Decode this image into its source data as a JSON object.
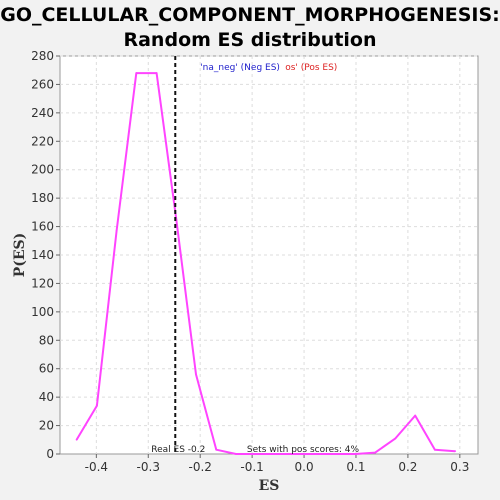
{
  "chart_data": {
    "type": "line",
    "title_line1": "GO_CELLULAR_COMPONENT_MORPHOGENESIS:",
    "title_line2": "Random ES distribution",
    "xlabel": "ES",
    "ylabel": "P(ES)",
    "xlim": [
      -0.47,
      0.335
    ],
    "ylim": [
      0,
      280
    ],
    "x_ticks": [
      -0.4,
      -0.3,
      -0.2,
      -0.1,
      0.0,
      0.1,
      0.2,
      0.3
    ],
    "x_tick_labels": [
      "-0.4",
      "-0.3",
      "-0.2",
      "-0.1",
      "0.0",
      "0.1",
      "0.2",
      "0.3"
    ],
    "y_ticks": [
      0,
      20,
      40,
      60,
      80,
      100,
      120,
      140,
      160,
      180,
      200,
      220,
      240,
      260,
      280
    ],
    "y_tick_labels": [
      "0",
      "20",
      "40",
      "60",
      "80",
      "100",
      "120",
      "140",
      "160",
      "180",
      "200",
      "220",
      "240",
      "260",
      "280"
    ],
    "grid": true,
    "series": [
      {
        "color": "#ff44ff",
        "x": [
          -0.438,
          -0.399,
          -0.361,
          -0.323,
          -0.284,
          -0.246,
          -0.208,
          -0.169,
          -0.131,
          -0.093,
          -0.054,
          -0.016,
          0.022,
          0.061,
          0.099,
          0.137,
          0.176,
          0.214,
          0.252,
          0.291
        ],
        "y": [
          10,
          34,
          157,
          268,
          268,
          165,
          56,
          3,
          0,
          0,
          0,
          0,
          0,
          0,
          0,
          1,
          11,
          27,
          3,
          2
        ]
      }
    ],
    "real_es": -0.248,
    "real_es_label": "Real ES -0.2",
    "pos_scores_label": "Sets with pos scores: 4%",
    "legend_neg": "'na_neg' (Neg ES)",
    "legend_pos": "os' (Pos ES)",
    "legend_placement": "top-center"
  }
}
